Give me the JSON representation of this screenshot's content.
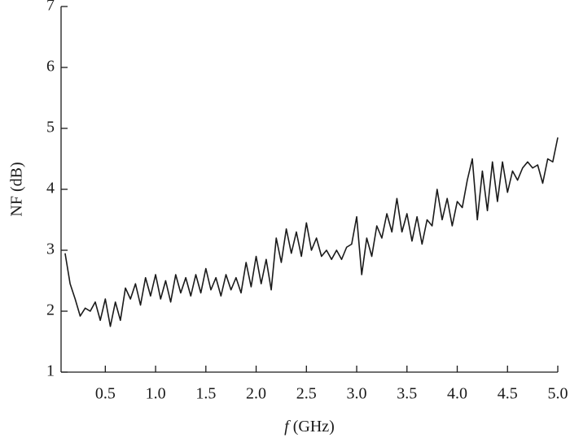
{
  "chart_data": {
    "type": "line",
    "xlabel_var": "f",
    "xlabel_unit": "(GHz)",
    "ylabel": "NF (dB)",
    "x": [
      0.1,
      0.15,
      0.2,
      0.25,
      0.3,
      0.35,
      0.4,
      0.45,
      0.5,
      0.55,
      0.6,
      0.65,
      0.7,
      0.75,
      0.8,
      0.85,
      0.9,
      0.95,
      1.0,
      1.05,
      1.1,
      1.15,
      1.2,
      1.25,
      1.3,
      1.35,
      1.4,
      1.45,
      1.5,
      1.55,
      1.6,
      1.65,
      1.7,
      1.75,
      1.8,
      1.85,
      1.9,
      1.95,
      2.0,
      2.05,
      2.1,
      2.15,
      2.2,
      2.25,
      2.3,
      2.35,
      2.4,
      2.45,
      2.5,
      2.55,
      2.6,
      2.65,
      2.7,
      2.75,
      2.8,
      2.85,
      2.9,
      2.95,
      3.0,
      3.05,
      3.1,
      3.15,
      3.2,
      3.25,
      3.3,
      3.35,
      3.4,
      3.45,
      3.5,
      3.55,
      3.6,
      3.65,
      3.7,
      3.75,
      3.8,
      3.85,
      3.9,
      3.95,
      4.0,
      4.05,
      4.1,
      4.15,
      4.2,
      4.25,
      4.3,
      4.35,
      4.4,
      4.45,
      4.5,
      4.55,
      4.6,
      4.65,
      4.7,
      4.75,
      4.8,
      4.85,
      4.9,
      4.95,
      5.0
    ],
    "series": [
      {
        "color": "#1a1a1a",
        "values": [
          2.95,
          2.45,
          2.2,
          1.92,
          2.05,
          2.0,
          2.15,
          1.85,
          2.2,
          1.75,
          2.15,
          1.85,
          2.38,
          2.2,
          2.45,
          2.1,
          2.55,
          2.25,
          2.6,
          2.2,
          2.5,
          2.15,
          2.6,
          2.3,
          2.55,
          2.25,
          2.6,
          2.3,
          2.7,
          2.35,
          2.55,
          2.25,
          2.6,
          2.35,
          2.55,
          2.3,
          2.8,
          2.4,
          2.9,
          2.45,
          2.85,
          2.35,
          3.2,
          2.8,
          3.35,
          2.95,
          3.3,
          2.9,
          3.45,
          3.0,
          3.2,
          2.9,
          3.0,
          2.85,
          3.0,
          2.85,
          3.05,
          3.1,
          3.55,
          2.6,
          3.2,
          2.9,
          3.4,
          3.2,
          3.6,
          3.3,
          3.85,
          3.3,
          3.6,
          3.15,
          3.55,
          3.1,
          3.5,
          3.4,
          4.0,
          3.5,
          3.85,
          3.4,
          3.8,
          3.7,
          4.15,
          4.5,
          3.5,
          4.3,
          3.65,
          4.45,
          3.8,
          4.45,
          3.95,
          4.3,
          4.15,
          4.35,
          4.45,
          4.35,
          4.4,
          4.1,
          4.5,
          4.45,
          4.85
        ]
      }
    ],
    "xlim": [
      0.06,
      5.0
    ],
    "xticks": [
      0.5,
      {
        "value": 1,
        "label": "1.0"
      },
      1.5,
      {
        "value": 2,
        "label": "2.0"
      },
      2.5,
      {
        "value": 3,
        "label": "3.0"
      },
      3.5,
      {
        "value": 4,
        "label": "4.0"
      },
      4.5,
      {
        "value": 5,
        "label": "5.0"
      }
    ],
    "ylim": [
      1,
      7
    ],
    "yticks": [
      1,
      2,
      3,
      4,
      5,
      6,
      7
    ]
  }
}
